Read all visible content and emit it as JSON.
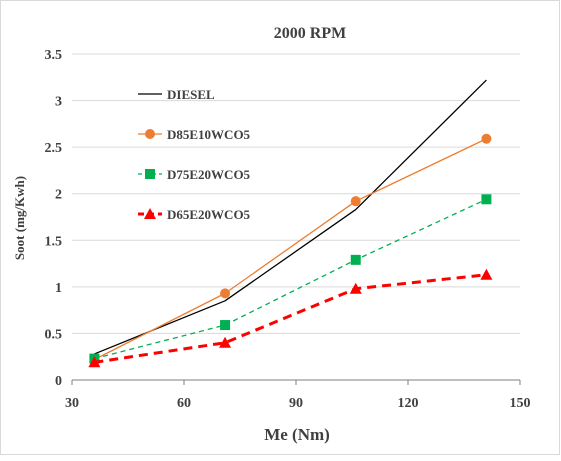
{
  "chart_data": {
    "type": "line",
    "title": "2000 RPM",
    "xlabel": "Me (Nm)",
    "ylabel": "Soot (mg/Kwh)",
    "xlim": [
      30,
      150
    ],
    "ylim": [
      0,
      3.5
    ],
    "x_ticks": [
      "30",
      "60",
      "90",
      "120",
      "150"
    ],
    "y_ticks": [
      "0",
      "0.5",
      "1",
      "1.5",
      "2",
      "2.5",
      "3",
      "3.5"
    ],
    "x_tick_values": [
      30,
      60,
      90,
      120,
      150
    ],
    "y_tick_values": [
      0,
      0.5,
      1,
      1.5,
      2,
      2.5,
      3,
      3.5
    ],
    "grid": "horizontal",
    "legend_position": "top-left",
    "series": [
      {
        "name": "DIESEL",
        "color": "#000000",
        "line_style": "solid",
        "marker": "none",
        "x": [
          36,
          71,
          106,
          141
        ],
        "y": [
          0.28,
          0.85,
          1.83,
          3.22
        ]
      },
      {
        "name": "D85E10WCO5",
        "color": "#ED7D31",
        "line_style": "solid",
        "marker": "circle",
        "x": [
          36,
          71,
          106,
          141
        ],
        "y": [
          0.22,
          0.93,
          1.92,
          2.59
        ]
      },
      {
        "name": "D75E20WCO5",
        "color": "#00B050",
        "line_style": "dashed",
        "marker": "square",
        "x": [
          36,
          71,
          106,
          141
        ],
        "y": [
          0.23,
          0.59,
          1.29,
          1.94
        ]
      },
      {
        "name": "D65E20WCO5",
        "color": "#FF0000",
        "line_style": "dashed-bold",
        "marker": "triangle",
        "x": [
          36,
          71,
          106,
          141
        ],
        "y": [
          0.19,
          0.4,
          0.98,
          1.13
        ]
      }
    ]
  }
}
